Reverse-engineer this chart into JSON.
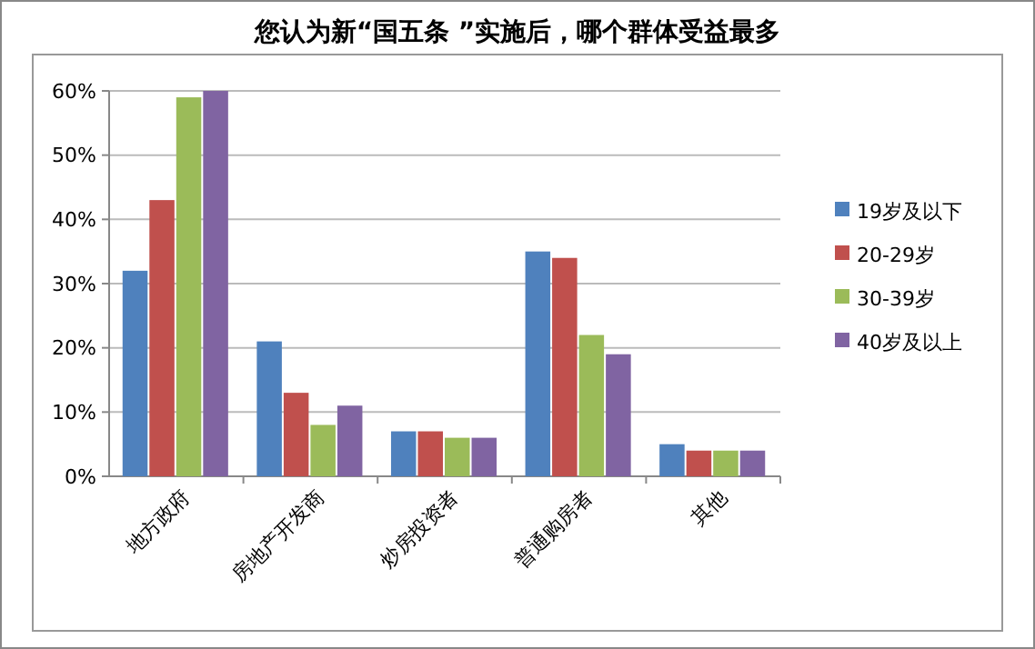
{
  "chart_data": {
    "type": "bar",
    "title": "您认为新“国五条 ”实施后，哪个群体受益最多",
    "categories": [
      "地方政府",
      "房地产开发商",
      "炒房投资者",
      "普通购房者",
      "其他"
    ],
    "series": [
      {
        "name": "19岁及以下",
        "color": "#4f81bd",
        "values": [
          32,
          21,
          7,
          35,
          5
        ]
      },
      {
        "name": "20-29岁",
        "color": "#c0504d",
        "values": [
          43,
          13,
          7,
          34,
          4
        ]
      },
      {
        "name": "30-39岁",
        "color": "#9bbb59",
        "values": [
          59,
          8,
          6,
          22,
          4
        ]
      },
      {
        "name": "40岁及以上",
        "color": "#8064a2",
        "values": [
          60,
          11,
          6,
          19,
          4
        ]
      }
    ],
    "ylim": [
      0,
      60
    ],
    "yticks": [
      {
        "value": 0,
        "label": "0%"
      },
      {
        "value": 10,
        "label": "10%"
      },
      {
        "value": 20,
        "label": "20%"
      },
      {
        "value": 30,
        "label": "30%"
      },
      {
        "value": 40,
        "label": "40%"
      },
      {
        "value": 50,
        "label": "50%"
      },
      {
        "value": 60,
        "label": "60%"
      }
    ],
    "grid": "y",
    "legend": "right"
  }
}
